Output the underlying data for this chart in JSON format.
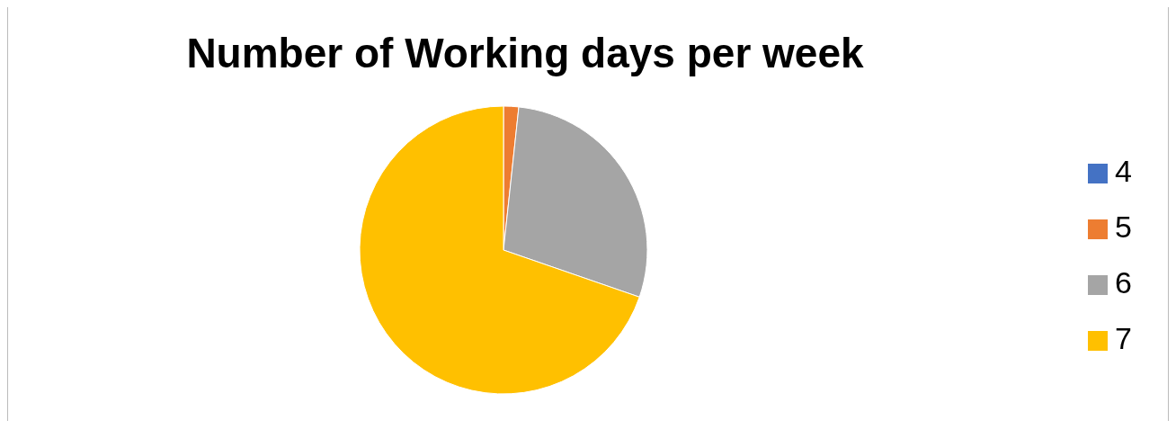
{
  "chart_data": {
    "type": "pie",
    "title": "Number of Working days per week",
    "categories": [
      "4",
      "5",
      "6",
      "7"
    ],
    "values": [
      0,
      1.7,
      28.6,
      69.7
    ],
    "colors": [
      "#4472c4",
      "#ed7d31",
      "#a5a5a5",
      "#ffc000"
    ],
    "legend": "right"
  }
}
